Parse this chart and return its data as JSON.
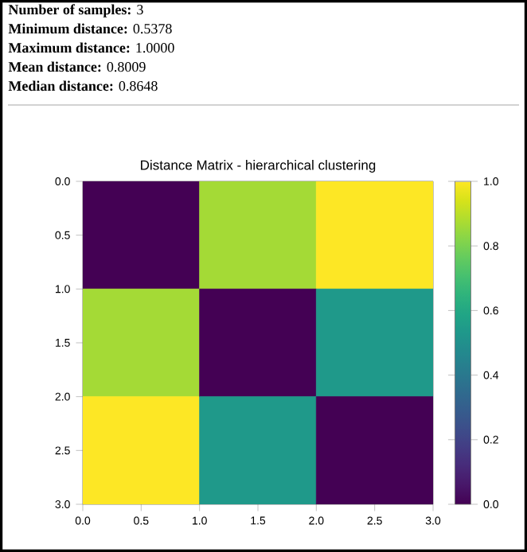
{
  "chart_data": {
    "type": "heatmap",
    "title": "Distance Matrix - hierarchical clustering",
    "cells": [
      [
        0,
        0.8648,
        1.0
      ],
      [
        0.8648,
        0,
        0.5378
      ],
      [
        1.0,
        0.5378,
        0
      ]
    ],
    "clim": [
      0,
      1
    ],
    "cticks": [
      {
        "value": 0,
        "label": "0.0"
      },
      {
        "value": 0.2,
        "label": "0.2"
      },
      {
        "value": 0.4,
        "label": "0.4"
      },
      {
        "value": 0.6,
        "label": "0.6"
      },
      {
        "value": 0.8,
        "label": "0.8"
      },
      {
        "value": 1,
        "label": "1.0"
      }
    ],
    "xlim": [
      0,
      3
    ],
    "ylim": [
      3,
      0
    ],
    "xticks": [
      {
        "value": 0,
        "label": "0.0"
      },
      {
        "value": 0.5,
        "label": "0.5"
      },
      {
        "value": 1,
        "label": "1.0"
      },
      {
        "value": 1.5,
        "label": "1.5"
      },
      {
        "value": 2,
        "label": "2.0"
      },
      {
        "value": 2.5,
        "label": "2.5"
      },
      {
        "value": 3,
        "label": "3.0"
      }
    ],
    "yticks": [
      {
        "value": 0,
        "label": "0.0"
      },
      {
        "value": 0.5,
        "label": "0.5"
      },
      {
        "value": 1,
        "label": "1.0"
      },
      {
        "value": 1.5,
        "label": "1.5"
      },
      {
        "value": 2,
        "label": "2.0"
      },
      {
        "value": 2.5,
        "label": "2.5"
      },
      {
        "value": 3,
        "label": "3.0"
      }
    ],
    "annotations": [
      "**Number of samples:** 3",
      "**Minimum distance:** 0.5378",
      "**Maximum distance:** 1.0000",
      "**Mean distance:** 0.8009",
      "**Median distance:** 0.8648"
    ]
  }
}
